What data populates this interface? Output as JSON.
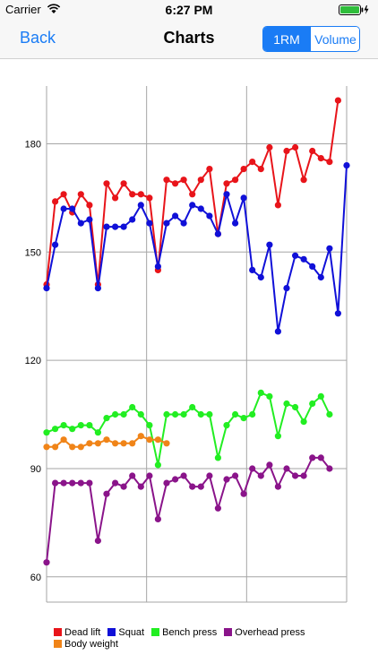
{
  "status": {
    "carrier": "Carrier",
    "time": "6:27 PM"
  },
  "nav": {
    "back": "Back",
    "title": "Charts",
    "segments": [
      "1RM",
      "Volume"
    ],
    "selected_segment": "1RM"
  },
  "legend": [
    {
      "label": "Dead lift",
      "color": "#e8141a"
    },
    {
      "label": "Squat",
      "color": "#1010d8"
    },
    {
      "label": "Bench press",
      "color": "#22ee22"
    },
    {
      "label": "Overhead press",
      "color": "#8a148a"
    },
    {
      "label": "Body weight",
      "color": "#f08418"
    }
  ],
  "chart_data": {
    "type": "line",
    "ylim": [
      53,
      196
    ],
    "y_ticks": [
      60,
      90,
      120,
      150,
      180
    ],
    "x_count": 36,
    "grid": true,
    "legend_position": "bottom",
    "series": [
      {
        "name": "Dead lift",
        "color": "#e8141a",
        "start": 0,
        "values": [
          141,
          164,
          166,
          161,
          166,
          163,
          141,
          169,
          165,
          169,
          166,
          166,
          165,
          145,
          170,
          169,
          170,
          166,
          170,
          173,
          155,
          169,
          170,
          173,
          175,
          173,
          179,
          163,
          178,
          179,
          170,
          178,
          176,
          175,
          192
        ]
      },
      {
        "name": "Squat",
        "color": "#1010d8",
        "start": 0,
        "values": [
          140,
          152,
          162,
          162,
          158,
          159,
          140,
          157,
          157,
          157,
          159,
          163,
          158,
          146,
          158,
          160,
          158,
          163,
          162,
          160,
          155,
          166,
          158,
          165,
          145,
          143,
          152,
          128,
          140,
          149,
          148,
          146,
          143,
          151,
          133,
          174
        ]
      },
      {
        "name": "Bench press",
        "color": "#22ee22",
        "start": 0,
        "values": [
          100,
          101,
          102,
          101,
          102,
          102,
          100,
          104,
          105,
          105,
          107,
          105,
          102,
          91,
          105,
          105,
          105,
          107,
          105,
          105,
          93,
          102,
          105,
          104,
          105,
          111,
          110,
          99,
          108,
          107,
          103,
          108,
          110,
          105
        ]
      },
      {
        "name": "Overhead press",
        "color": "#8a148a",
        "start": 0,
        "values": [
          64,
          86,
          86,
          86,
          86,
          86,
          70,
          83,
          86,
          85,
          88,
          85,
          88,
          76,
          86,
          87,
          88,
          85,
          85,
          88,
          79,
          87,
          88,
          83,
          90,
          88,
          91,
          85,
          90,
          88,
          88,
          93,
          93,
          90
        ]
      },
      {
        "name": "Body weight",
        "color": "#f08418",
        "start": 0,
        "values": [
          96,
          96,
          98,
          96,
          96,
          97,
          97,
          98,
          97,
          97,
          97,
          99,
          98,
          98,
          97
        ]
      }
    ]
  }
}
